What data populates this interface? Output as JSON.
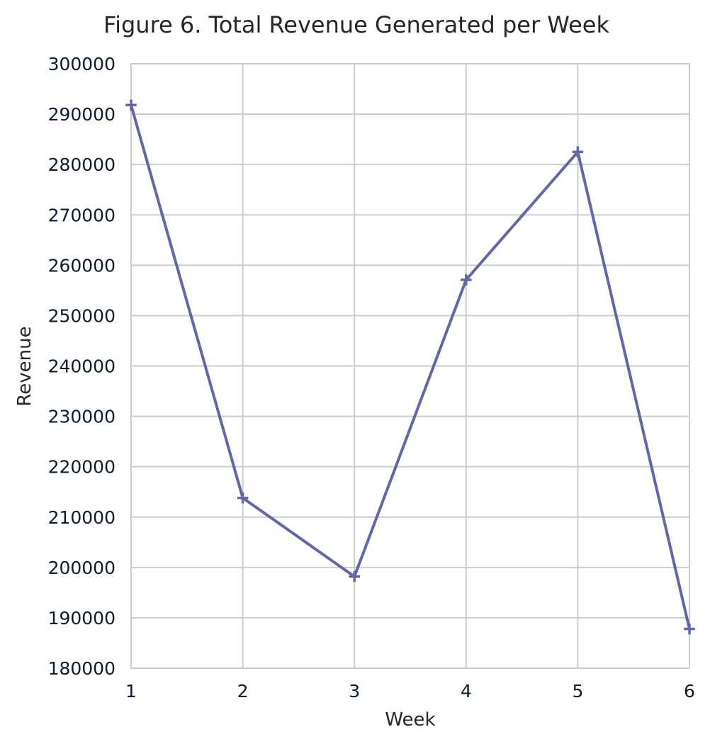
{
  "chart_data": {
    "type": "line",
    "title": "Figure 6. Total Revenue Generated per Week",
    "xlabel": "Week",
    "ylabel": "Revenue",
    "x": [
      1,
      2,
      3,
      4,
      5,
      6
    ],
    "xticks": [
      "1",
      "2",
      "3",
      "4",
      "5",
      "6"
    ],
    "xlim": [
      1,
      6
    ],
    "ylim": [
      180000,
      300000
    ],
    "yticks": [
      "180000",
      "190000",
      "200000",
      "210000",
      "220000",
      "230000",
      "240000",
      "250000",
      "260000",
      "270000",
      "280000",
      "290000",
      "300000"
    ],
    "series": [
      {
        "values": [
          291800,
          213800,
          198200,
          257100,
          282500,
          187800
        ],
        "color": "#6467a3",
        "marker": "plus"
      }
    ],
    "grid": true,
    "legend": "none"
  }
}
